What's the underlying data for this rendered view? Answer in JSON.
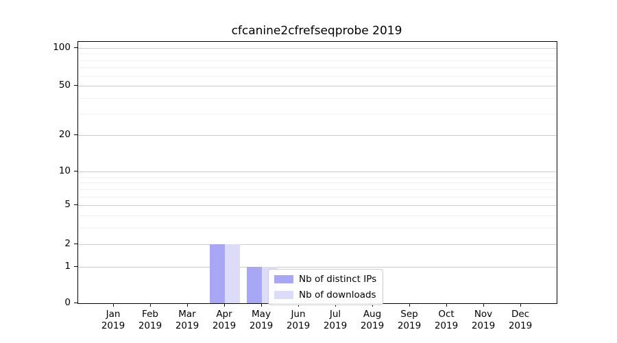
{
  "chart_data": {
    "type": "bar",
    "title": "cfcanine2cfrefseqprobe 2019",
    "year_label": "2019",
    "categories": [
      "Jan",
      "Feb",
      "Mar",
      "Apr",
      "May",
      "Jun",
      "Jul",
      "Aug",
      "Sep",
      "Oct",
      "Nov",
      "Dec"
    ],
    "series": [
      {
        "name": "Nb of distinct IPs",
        "color": "#a7a7f6",
        "values": [
          0,
          0,
          0,
          2,
          1,
          0,
          0,
          0,
          0,
          0,
          0,
          0
        ]
      },
      {
        "name": "Nb of downloads",
        "color": "#dcdbf8",
        "values": [
          0,
          0,
          0,
          2,
          1,
          0,
          0,
          0,
          0,
          0,
          0,
          0
        ]
      }
    ],
    "yscale": "log1p",
    "yticks": [
      0,
      1,
      2,
      5,
      10,
      20,
      50,
      100
    ],
    "minor_yticks": [
      3,
      4,
      6,
      7,
      8,
      9,
      30,
      40,
      60,
      70,
      80,
      90
    ],
    "ylim": [
      0,
      112
    ],
    "xlabel": "",
    "ylabel": "",
    "grid": true,
    "legend_position": "lower center-left inside plot",
    "colors": {
      "major_grid": "#cccccc",
      "minor_grid": "#f0f0f0",
      "spine": "#000000",
      "text": "#000000"
    }
  }
}
